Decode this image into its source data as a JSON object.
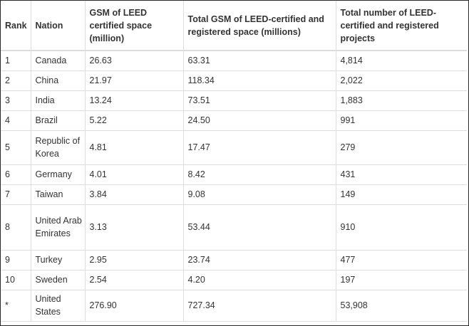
{
  "headers": {
    "rank": "Rank",
    "nation": "Nation",
    "gsm": "GSM of LEED certified space (million)",
    "total_gsm": "Total GSM of LEED-certified and registered space (millions)",
    "total_projects": "Total number of LEED-certified and registered projects"
  },
  "rows": [
    {
      "rank": "1",
      "nation": "Canada",
      "gsm": "26.63",
      "total_gsm": "63.31",
      "projects": "4,814"
    },
    {
      "rank": "2",
      "nation": "China",
      "gsm": "21.97",
      "total_gsm": "118.34",
      "projects": "2,022"
    },
    {
      "rank": "3",
      "nation": "India",
      "gsm": "13.24",
      "total_gsm": "73.51",
      "projects": "1,883"
    },
    {
      "rank": "4",
      "nation": "Brazil",
      "gsm": "5.22",
      "total_gsm": "24.50",
      "projects": "991"
    },
    {
      "rank": "5",
      "nation": "Republic of Korea",
      "gsm": "4.81",
      "total_gsm": "17.47",
      "projects": "279"
    },
    {
      "rank": "6",
      "nation": "Germany",
      "gsm": "4.01",
      "total_gsm": "8.42",
      "projects": "431"
    },
    {
      "rank": "7",
      "nation": "Taiwan",
      "gsm": "3.84",
      "total_gsm": "9.08",
      "projects": "149"
    },
    {
      "rank": "8",
      "nation": "United Arab Emirates",
      "gsm": "3.13",
      "total_gsm": "53.44",
      "projects": "910"
    },
    {
      "rank": "9",
      "nation": "Turkey",
      "gsm": "2.95",
      "total_gsm": "23.74",
      "projects": "477"
    },
    {
      "rank": "10",
      "nation": "Sweden",
      "gsm": "2.54",
      "total_gsm": "4.20",
      "projects": "197"
    },
    {
      "rank": "*",
      "nation": "United States",
      "gsm": "276.90",
      "total_gsm": "727.34",
      "projects": "53,908"
    }
  ]
}
